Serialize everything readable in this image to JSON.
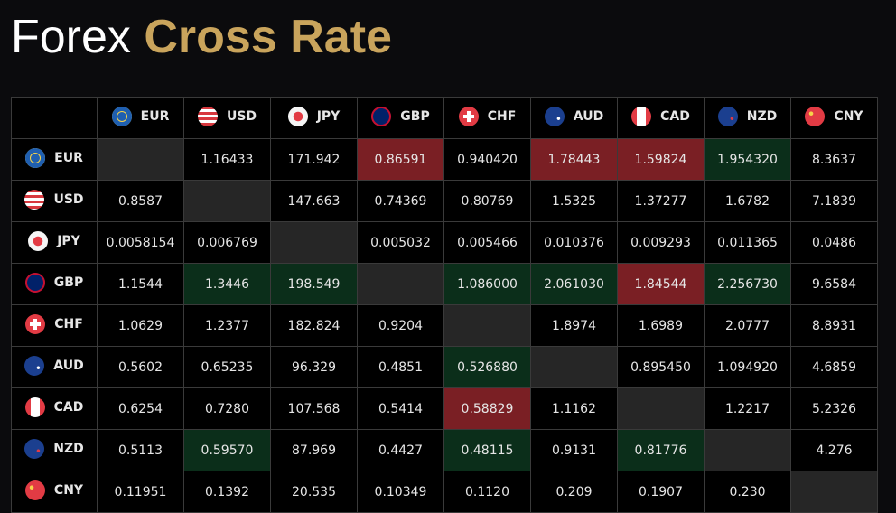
{
  "title": {
    "part1": "Forex",
    "part2": "Cross Rate"
  },
  "colors": {
    "gold": "#c9a45c",
    "up": "#0b2e1a",
    "down": "#7a1f24",
    "diagonal": "#262626"
  },
  "currencies": [
    {
      "code": "EUR",
      "flag": "eu-flag-icon"
    },
    {
      "code": "USD",
      "flag": "us-flag-icon"
    },
    {
      "code": "JPY",
      "flag": "jp-flag-icon"
    },
    {
      "code": "GBP",
      "flag": "gb-flag-icon"
    },
    {
      "code": "CHF",
      "flag": "ch-flag-icon"
    },
    {
      "code": "AUD",
      "flag": "au-flag-icon"
    },
    {
      "code": "CAD",
      "flag": "ca-flag-icon"
    },
    {
      "code": "NZD",
      "flag": "nz-flag-icon"
    },
    {
      "code": "CNY",
      "flag": "cn-flag-icon"
    }
  ],
  "rows": [
    {
      "code": "EUR",
      "cells": [
        [
          "",
          ""
        ],
        [
          "1.16433",
          ""
        ],
        [
          "171.942",
          ""
        ],
        [
          "0.86591",
          "down"
        ],
        [
          "0.940420",
          ""
        ],
        [
          "1.78443",
          "down"
        ],
        [
          "1.59824",
          "down"
        ],
        [
          "1.954320",
          "up"
        ],
        [
          "8.3637",
          ""
        ]
      ]
    },
    {
      "code": "USD",
      "cells": [
        [
          "0.8587",
          ""
        ],
        [
          "",
          ""
        ],
        [
          "147.663",
          ""
        ],
        [
          "0.74369",
          ""
        ],
        [
          "0.80769",
          ""
        ],
        [
          "1.5325",
          ""
        ],
        [
          "1.37277",
          ""
        ],
        [
          "1.6782",
          ""
        ],
        [
          "7.1839",
          ""
        ]
      ]
    },
    {
      "code": "JPY",
      "cells": [
        [
          "0.0058154",
          ""
        ],
        [
          "0.006769",
          ""
        ],
        [
          "",
          ""
        ],
        [
          "0.005032",
          ""
        ],
        [
          "0.005466",
          ""
        ],
        [
          "0.010376",
          ""
        ],
        [
          "0.009293",
          ""
        ],
        [
          "0.011365",
          ""
        ],
        [
          "0.0486",
          ""
        ]
      ]
    },
    {
      "code": "GBP",
      "cells": [
        [
          "1.1544",
          ""
        ],
        [
          "1.3446",
          "up"
        ],
        [
          "198.549",
          "up"
        ],
        [
          "",
          ""
        ],
        [
          "1.086000",
          "up"
        ],
        [
          "2.061030",
          "up"
        ],
        [
          "1.84544",
          "down"
        ],
        [
          "2.256730",
          "up"
        ],
        [
          "9.6584",
          ""
        ]
      ]
    },
    {
      "code": "CHF",
      "cells": [
        [
          "1.0629",
          ""
        ],
        [
          "1.2377",
          ""
        ],
        [
          "182.824",
          ""
        ],
        [
          "0.9204",
          ""
        ],
        [
          "",
          ""
        ],
        [
          "1.8974",
          ""
        ],
        [
          "1.6989",
          ""
        ],
        [
          "2.0777",
          ""
        ],
        [
          "8.8931",
          ""
        ]
      ]
    },
    {
      "code": "AUD",
      "cells": [
        [
          "0.5602",
          ""
        ],
        [
          "0.65235",
          ""
        ],
        [
          "96.329",
          ""
        ],
        [
          "0.4851",
          ""
        ],
        [
          "0.526880",
          "up"
        ],
        [
          "",
          ""
        ],
        [
          "0.895450",
          ""
        ],
        [
          "1.094920",
          ""
        ],
        [
          "4.6859",
          ""
        ]
      ]
    },
    {
      "code": "CAD",
      "cells": [
        [
          "0.6254",
          ""
        ],
        [
          "0.7280",
          ""
        ],
        [
          "107.568",
          ""
        ],
        [
          "0.5414",
          ""
        ],
        [
          "0.58829",
          "down"
        ],
        [
          "1.1162",
          ""
        ],
        [
          "",
          ""
        ],
        [
          "1.2217",
          ""
        ],
        [
          "5.2326",
          ""
        ]
      ]
    },
    {
      "code": "NZD",
      "cells": [
        [
          "0.5113",
          ""
        ],
        [
          "0.59570",
          "up"
        ],
        [
          "87.969",
          ""
        ],
        [
          "0.4427",
          ""
        ],
        [
          "0.48115",
          "up"
        ],
        [
          "0.9131",
          ""
        ],
        [
          "0.81776",
          "up"
        ],
        [
          "",
          ""
        ],
        [
          "4.276",
          ""
        ]
      ]
    },
    {
      "code": "CNY",
      "cells": [
        [
          "0.11951",
          ""
        ],
        [
          "0.1392",
          ""
        ],
        [
          "20.535",
          ""
        ],
        [
          "0.10349",
          ""
        ],
        [
          "0.1120",
          ""
        ],
        [
          "0.209",
          ""
        ],
        [
          "0.1907",
          ""
        ],
        [
          "0.230",
          ""
        ],
        [
          "",
          ""
        ]
      ]
    }
  ]
}
